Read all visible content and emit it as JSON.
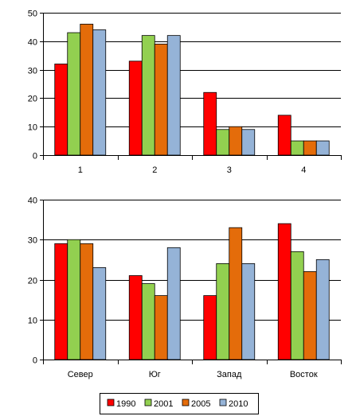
{
  "legend": {
    "placement": "bottom-center",
    "entries": [
      {
        "label": "1990",
        "color": "#ff0000"
      },
      {
        "label": "2001",
        "color": "#92d050"
      },
      {
        "label": "2005",
        "color": "#e46c0a"
      },
      {
        "label": "2010",
        "color": "#95b3d7"
      }
    ]
  },
  "chart_data": [
    {
      "type": "bar",
      "title": "",
      "xlabel": "",
      "ylabel": "",
      "ylim": [
        0,
        50
      ],
      "yticks": [
        0,
        10,
        20,
        30,
        40,
        50
      ],
      "grid": true,
      "categories": [
        "1",
        "2",
        "3",
        "4"
      ],
      "series": [
        {
          "name": "1990",
          "color": "#ff0000",
          "values": [
            32,
            33,
            22,
            14
          ]
        },
        {
          "name": "2001",
          "color": "#92d050",
          "values": [
            43,
            42,
            9,
            5
          ]
        },
        {
          "name": "2005",
          "color": "#e46c0a",
          "values": [
            46,
            39,
            10,
            5
          ]
        },
        {
          "name": "2010",
          "color": "#95b3d7",
          "values": [
            44,
            42,
            9,
            5
          ]
        }
      ]
    },
    {
      "type": "bar",
      "title": "",
      "xlabel": "",
      "ylabel": "",
      "ylim": [
        0,
        40
      ],
      "yticks": [
        0,
        10,
        20,
        30,
        40
      ],
      "grid": true,
      "categories": [
        "Север",
        "Юг",
        "Запад",
        "Восток"
      ],
      "series": [
        {
          "name": "1990",
          "color": "#ff0000",
          "values": [
            29,
            21,
            16,
            34
          ]
        },
        {
          "name": "2001",
          "color": "#92d050",
          "values": [
            30,
            19,
            24,
            27
          ]
        },
        {
          "name": "2005",
          "color": "#e46c0a",
          "values": [
            29,
            16,
            33,
            22
          ]
        },
        {
          "name": "2010",
          "color": "#95b3d7",
          "values": [
            23,
            28,
            24,
            25
          ]
        }
      ]
    }
  ]
}
